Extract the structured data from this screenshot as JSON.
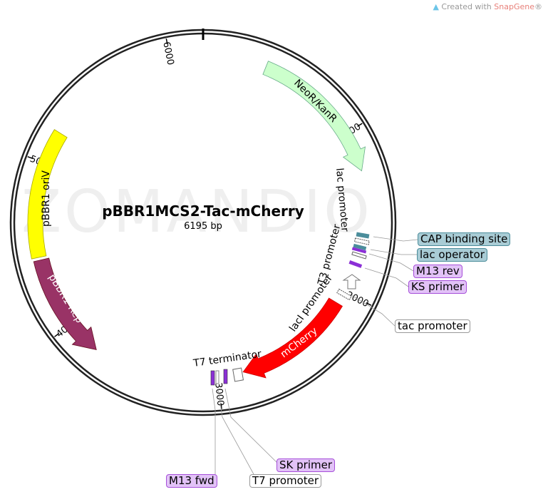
{
  "credit": {
    "prefix": "Created with ",
    "brand": "SnapGene",
    "suffix": "®"
  },
  "watermark": "ZOMANDIO",
  "plasmid": {
    "name": "pBBR1MCS2-Tac-mCherry",
    "length": "6195 bp"
  },
  "ticks": [
    "1000",
    "2000",
    "3000",
    "4000",
    "5000",
    "6000"
  ],
  "features": {
    "neo": "NeoR/KanR",
    "mcherry": "mCherry",
    "oriv": "pBBR1 oriV",
    "rep": "pBBR1 Rep",
    "lac_promoter": "lac promoter",
    "t3_promoter": "T3 promoter",
    "laci_promoter": "lacI promoter",
    "t7_terminator": "T7 terminator"
  },
  "callouts": {
    "cap": "CAP binding site",
    "lacop": "lac operator",
    "m13rev": "M13 rev",
    "ks": "KS primer",
    "tac": "tac promoter",
    "sk": "SK primer",
    "m13fwd": "M13 fwd",
    "t7": "T7 promoter"
  },
  "colors": {
    "neo": "#ccffcc",
    "mcherry": "#ff0000",
    "oriv": "#ffff00",
    "rep": "#993366",
    "teal": "#a9ccd5",
    "purple": "#e2c2f7"
  }
}
